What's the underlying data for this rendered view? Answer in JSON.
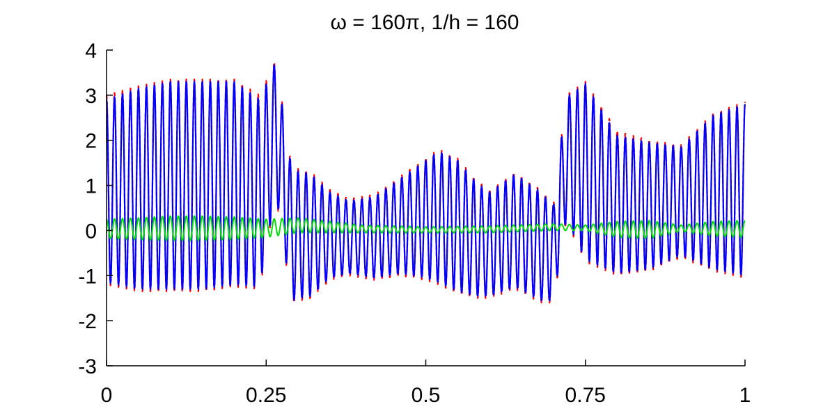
{
  "chart_data": {
    "type": "line",
    "title": "ω = 160π, 1/h = 160",
    "xlabel": "",
    "ylabel": "",
    "xlim": [
      0,
      1
    ],
    "ylim": [
      -3,
      4
    ],
    "grid": false,
    "x_ticks": [
      0,
      0.25,
      0.5,
      0.75,
      1
    ],
    "x_tick_labels": [
      "0",
      "0.25",
      "0.5",
      "0.75",
      "1"
    ],
    "y_ticks": [
      -3,
      -2,
      -1,
      0,
      1,
      2,
      3,
      4
    ],
    "y_tick_labels": [
      "-3",
      "-2",
      "-1",
      "0",
      "1",
      "2",
      "3",
      "4"
    ],
    "oscillation_frequency": 80,
    "series": [
      {
        "color": "#ff0000",
        "style": "dashed",
        "x": [
          0,
          0.05,
          0.1,
          0.15,
          0.2,
          0.24,
          0.265,
          0.29,
          0.32,
          0.35,
          0.38,
          0.42,
          0.46,
          0.5,
          0.52,
          0.55,
          0.58,
          0.6,
          0.64,
          0.68,
          0.7,
          0.72,
          0.75,
          0.8,
          0.85,
          0.9,
          0.95,
          1.0
        ],
        "upper": [
          3.0,
          3.2,
          3.35,
          3.35,
          3.35,
          3.0,
          3.8,
          1.4,
          1.3,
          0.9,
          0.7,
          0.8,
          1.2,
          1.6,
          1.8,
          1.6,
          1.1,
          0.9,
          1.3,
          0.9,
          0.6,
          3.0,
          3.3,
          2.2,
          2.0,
          1.9,
          2.6,
          2.85
        ],
        "lower": [
          -1.2,
          -1.35,
          -1.35,
          -1.35,
          -1.25,
          -1.3,
          0.8,
          -1.6,
          -1.5,
          -1.1,
          -1.0,
          -1.1,
          -1.0,
          -1.1,
          -1.2,
          -1.4,
          -1.5,
          -1.5,
          -1.3,
          -1.6,
          -1.6,
          0.2,
          -0.7,
          -1.0,
          -0.9,
          -0.6,
          -0.9,
          -1.05
        ]
      },
      {
        "color": "#0000ff",
        "style": "solid",
        "x": [
          0,
          0.05,
          0.1,
          0.15,
          0.2,
          0.24,
          0.265,
          0.29,
          0.32,
          0.35,
          0.38,
          0.42,
          0.46,
          0.5,
          0.52,
          0.55,
          0.58,
          0.6,
          0.64,
          0.68,
          0.7,
          0.72,
          0.75,
          0.8,
          0.85,
          0.9,
          0.95,
          1.0
        ],
        "upper": [
          2.9,
          3.15,
          3.3,
          3.3,
          3.3,
          2.9,
          3.75,
          1.35,
          1.25,
          0.85,
          0.65,
          0.75,
          1.15,
          1.55,
          1.75,
          1.55,
          1.05,
          0.85,
          1.25,
          0.85,
          0.55,
          2.95,
          3.25,
          2.1,
          1.95,
          1.85,
          2.55,
          2.8
        ],
        "lower": [
          -1.15,
          -1.3,
          -1.3,
          -1.3,
          -1.2,
          -1.25,
          0.85,
          -1.55,
          -1.45,
          -1.05,
          -0.95,
          -1.05,
          -0.95,
          -1.05,
          -1.15,
          -1.35,
          -1.45,
          -1.45,
          -1.25,
          -1.55,
          -1.55,
          0.25,
          -0.65,
          -0.95,
          -0.85,
          -0.55,
          -0.85,
          -1.0
        ]
      },
      {
        "color": "#00dd00",
        "style": "solid",
        "x": [
          0,
          0.05,
          0.1,
          0.15,
          0.2,
          0.25,
          0.3,
          0.4,
          0.5,
          0.6,
          0.7,
          0.75,
          0.8,
          0.85,
          0.9,
          0.95,
          1.0
        ],
        "upper": [
          0.25,
          0.28,
          0.32,
          0.32,
          0.3,
          0.25,
          0.28,
          0.12,
          0.08,
          0.1,
          0.15,
          0.12,
          0.2,
          0.22,
          0.12,
          0.2,
          0.22
        ],
        "lower": [
          -0.18,
          -0.2,
          -0.22,
          -0.22,
          -0.2,
          -0.15,
          -0.05,
          -0.05,
          -0.05,
          -0.05,
          0.0,
          0.0,
          -0.15,
          -0.18,
          -0.02,
          -0.12,
          -0.15
        ]
      }
    ]
  }
}
